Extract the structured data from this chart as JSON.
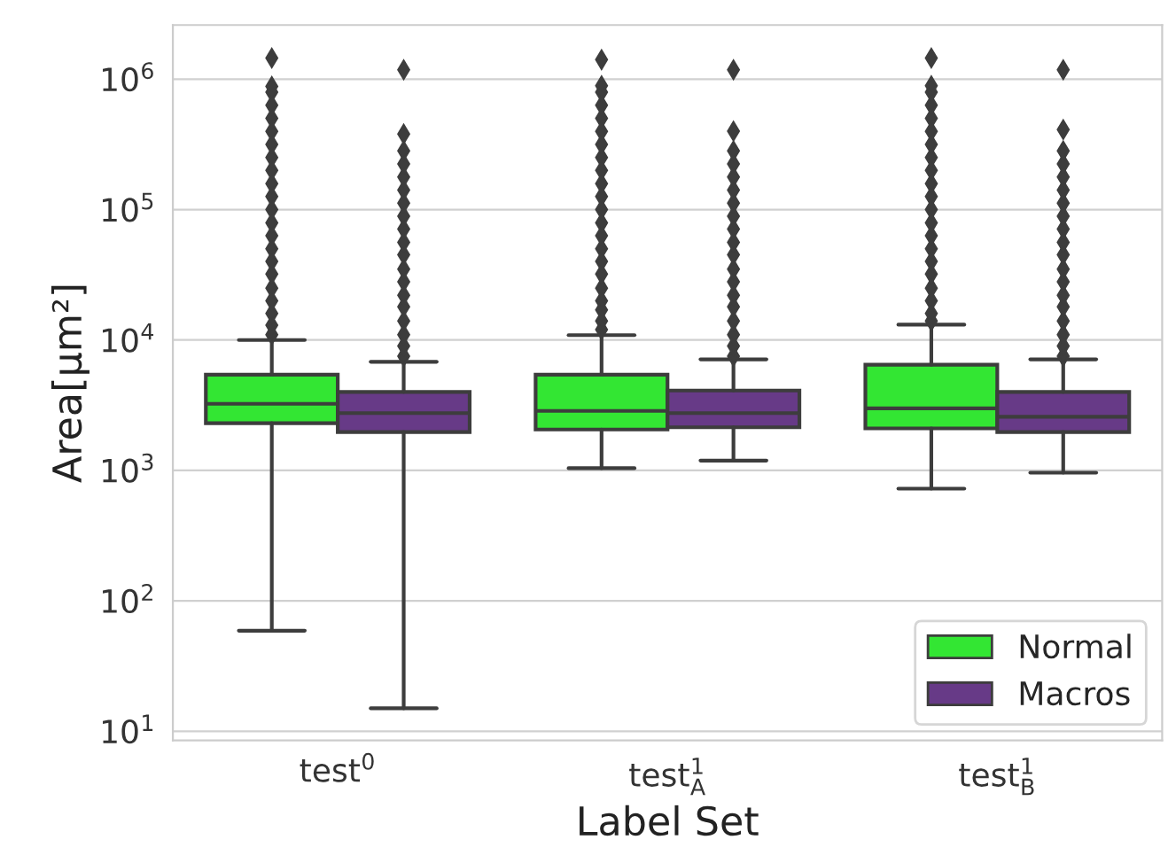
{
  "chart_data": {
    "type": "box",
    "xlabel": "Label Set",
    "ylabel": "Area[µm²]",
    "categories": [
      "test$^{0}$",
      "test$^{1}$$_{A}$",
      "test$^{1}$$_{B}$"
    ],
    "log": "y",
    "ylim": [
      8.5,
      2600000
    ],
    "yticks": [
      {
        "value": 10,
        "label": "10$^{1}$"
      },
      {
        "value": 100,
        "label": "10$^{2}$"
      },
      {
        "value": 1000,
        "label": "10$^{3}$"
      },
      {
        "value": 10000,
        "label": "10$^{4}$"
      },
      {
        "value": 100000,
        "label": "10$^{5}$"
      },
      {
        "value": 1000000,
        "label": "10$^{6}$"
      }
    ],
    "grid": "y",
    "legend": "bottom right",
    "marker": "diamond",
    "series": [
      {
        "name": "Normal",
        "color": "#33e633",
        "boxes": [
          {
            "low": 59,
            "q1": 2300,
            "median": 3240,
            "q3": 5420,
            "high": 10000,
            "outliers": [
              11000,
              13000,
              16000,
              20000,
              25000,
              32000,
              40000,
              50000,
              63000,
              79000,
              100000,
              126000,
              158000,
              200000,
              251000,
              316000,
              398000,
              501000,
              631000,
              794000,
              880000,
              1450000
            ]
          },
          {
            "low": 1040,
            "q1": 2060,
            "median": 2860,
            "q3": 5420,
            "high": 10900,
            "outliers": [
              12000,
              14000,
              17000,
              20000,
              25000,
              32000,
              40000,
              50000,
              63000,
              79000,
              100000,
              126000,
              158000,
              200000,
              251000,
              316000,
              398000,
              501000,
              631000,
              794000,
              890000,
              1410000
            ]
          },
          {
            "low": 725,
            "q1": 2100,
            "median": 2990,
            "q3": 6460,
            "high": 13100,
            "outliers": [
              14000,
              16000,
              20000,
              25000,
              32000,
              40000,
              50000,
              63000,
              79000,
              100000,
              126000,
              158000,
              200000,
              251000,
              316000,
              398000,
              501000,
              631000,
              794000,
              890000,
              1450000
            ]
          }
        ]
      },
      {
        "name": "Macros",
        "color": "#673a87",
        "boxes": [
          {
            "low": 15,
            "q1": 1970,
            "median": 2750,
            "q3": 4000,
            "high": 6800,
            "outliers": [
              7500,
              9000,
              11000,
              14000,
              18000,
              22000,
              28000,
              35000,
              45000,
              56000,
              71000,
              89000,
              112000,
              141000,
              178000,
              224000,
              282000,
              380000,
              1180000
            ]
          },
          {
            "low": 1190,
            "q1": 2140,
            "median": 2750,
            "q3": 4100,
            "high": 7100,
            "outliers": [
              7500,
              9000,
              11000,
              14000,
              18000,
              22000,
              28000,
              35000,
              45000,
              56000,
              71000,
              89000,
              112000,
              141000,
              178000,
              224000,
              282000,
              400000,
              1180000
            ]
          },
          {
            "low": 960,
            "q1": 1970,
            "median": 2580,
            "q3": 4000,
            "high": 7100,
            "outliers": [
              7500,
              9000,
              11000,
              14000,
              18000,
              22000,
              28000,
              35000,
              45000,
              56000,
              71000,
              89000,
              112000,
              141000,
              178000,
              224000,
              282000,
              410000,
              1180000
            ]
          }
        ]
      }
    ]
  }
}
